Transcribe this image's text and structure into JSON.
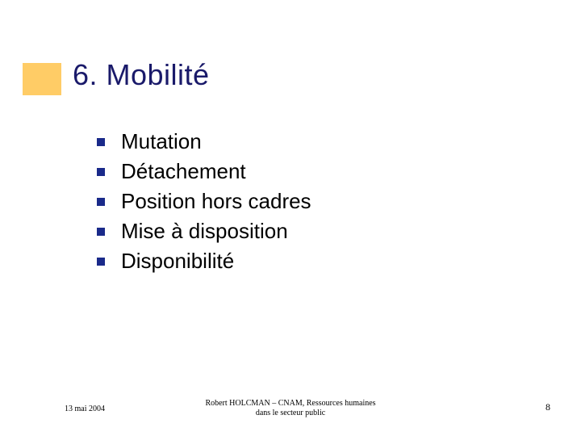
{
  "title": "6. Mobilité",
  "title_color": "#1a1a6a",
  "title_bg_color": "#ffcc66",
  "bullets": [
    {
      "label": "Mutation"
    },
    {
      "label": "Détachement"
    },
    {
      "label": "Position hors cadres"
    },
    {
      "label": "Mise à disposition"
    },
    {
      "label": "Disponibilité"
    }
  ],
  "bullet_text_color": "#000000",
  "bullet_square_color": "#1a2a8a",
  "footer": {
    "date": "13 mai 2004",
    "center_line1": "Robert HOLCMAN – CNAM, Ressources humaines",
    "center_line2": "dans le secteur public",
    "page": "8"
  },
  "colors": {
    "background": "#ffffff",
    "text": "#000000"
  }
}
